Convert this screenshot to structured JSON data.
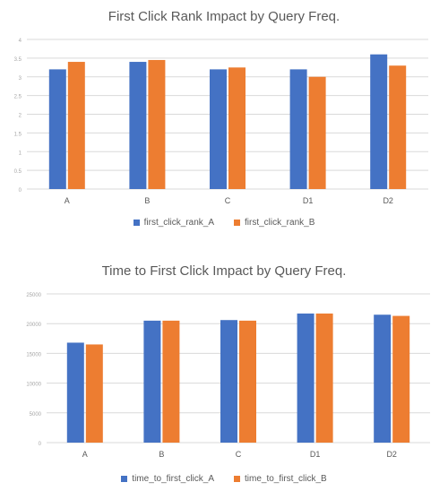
{
  "chart_data": [
    {
      "type": "bar",
      "title": "First Click Rank Impact by Query Freq.",
      "categories": [
        "A",
        "B",
        "C",
        "D1",
        "D2"
      ],
      "series": [
        {
          "name": "first_click_rank_A",
          "values": [
            3.2,
            3.4,
            3.2,
            3.2,
            3.6
          ]
        },
        {
          "name": "first_click_rank_B",
          "values": [
            3.4,
            3.45,
            3.25,
            3.0,
            3.3
          ]
        }
      ],
      "ylim": [
        0,
        4
      ],
      "yticks": [
        "0",
        "0.5",
        "1",
        "1.5",
        "2",
        "2.5",
        "3",
        "3.5",
        "4"
      ],
      "grid": true,
      "legend": "bottom",
      "colors": [
        "#4472C4",
        "#ED7D31"
      ]
    },
    {
      "type": "bar",
      "title": "Time to First Click Impact by Query Freq.",
      "categories": [
        "A",
        "B",
        "C",
        "D1",
        "D2"
      ],
      "series": [
        {
          "name": "time_to_first_click_A",
          "values": [
            16800,
            20500,
            20600,
            21700,
            21500
          ]
        },
        {
          "name": "time_to_first_click_B",
          "values": [
            16500,
            20500,
            20500,
            21700,
            21300
          ]
        }
      ],
      "ylim": [
        0,
        25000
      ],
      "yticks": [
        "0",
        "5000",
        "10000",
        "15000",
        "20000",
        "25000"
      ],
      "grid": true,
      "legend": "bottom",
      "colors": [
        "#4472C4",
        "#ED7D31"
      ]
    }
  ]
}
